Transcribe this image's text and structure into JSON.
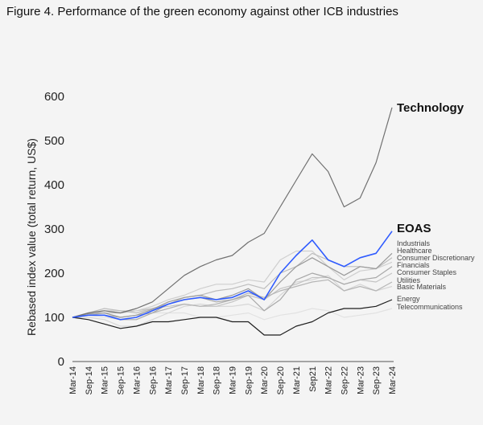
{
  "chart_data": {
    "type": "line",
    "title": "Figure 4. Performance of the green economy against other ICB industries",
    "xlabel": "",
    "ylabel": "Rebased index value (total return, US$)",
    "ylim": [
      0,
      600
    ],
    "yticks": [
      0,
      100,
      200,
      300,
      400,
      500,
      600
    ],
    "grid": false,
    "legend": "direct labels at right",
    "categories": [
      "Mar-14",
      "Sep-14",
      "Mar-15",
      "Sep-15",
      "Mar-16",
      "Sep-16",
      "Mar-17",
      "Sep-17",
      "Mar-18",
      "Sep-18",
      "Mar-19",
      "Sep-19",
      "Mar-20",
      "Sep-20",
      "Mar-21",
      "Sep21",
      "Mar-22",
      "Sep-22",
      "Mar-23",
      "Sep-23",
      "Mar-24"
    ],
    "series": [
      {
        "name": "Technology",
        "color": "#707070",
        "values": [
          100,
          110,
          115,
          110,
          120,
          135,
          165,
          195,
          215,
          230,
          240,
          270,
          290,
          350,
          410,
          470,
          430,
          350,
          370,
          450,
          575
        ]
      },
      {
        "name": "EOAS",
        "color": "#2f5bff",
        "values": [
          100,
          105,
          105,
          95,
          100,
          115,
          130,
          140,
          145,
          140,
          145,
          160,
          140,
          200,
          240,
          275,
          230,
          215,
          235,
          245,
          295
        ]
      },
      {
        "name": "Industrials",
        "color": "#9a9a9a",
        "values": [
          100,
          108,
          110,
          100,
          105,
          118,
          135,
          145,
          150,
          140,
          150,
          165,
          140,
          180,
          215,
          235,
          215,
          195,
          215,
          210,
          245
        ]
      },
      {
        "name": "Healthcare",
        "color": "#bdbdbd",
        "values": [
          100,
          110,
          120,
          115,
          110,
          120,
          130,
          145,
          150,
          160,
          165,
          175,
          165,
          200,
          215,
          245,
          230,
          215,
          215,
          210,
          235
        ]
      },
      {
        "name": "Consumer Discretionary",
        "color": "#cfcfcf",
        "values": [
          100,
          105,
          115,
          115,
          115,
          125,
          140,
          150,
          165,
          175,
          175,
          185,
          180,
          230,
          250,
          250,
          215,
          185,
          205,
          210,
          225
        ]
      },
      {
        "name": "Financials",
        "color": "#a8a8a8",
        "values": [
          100,
          105,
          105,
          95,
          95,
          110,
          130,
          140,
          145,
          135,
          140,
          150,
          115,
          140,
          185,
          200,
          190,
          175,
          185,
          190,
          215
        ]
      },
      {
        "name": "Consumer Staples",
        "color": "#c4c4c4",
        "values": [
          100,
          105,
          110,
          110,
          115,
          120,
          125,
          130,
          125,
          125,
          135,
          150,
          140,
          165,
          175,
          190,
          190,
          175,
          185,
          180,
          200
        ]
      },
      {
        "name": "Utilities",
        "color": "#b5b5b5",
        "values": [
          100,
          105,
          105,
          100,
          105,
          110,
          120,
          130,
          125,
          130,
          140,
          155,
          145,
          160,
          170,
          180,
          185,
          160,
          170,
          160,
          180
        ]
      },
      {
        "name": "Basic Materials",
        "color": "#d6d6d6",
        "values": [
          100,
          100,
          95,
          80,
          80,
          95,
          110,
          125,
          130,
          125,
          125,
          130,
          115,
          150,
          180,
          185,
          195,
          160,
          175,
          160,
          170
        ]
      },
      {
        "name": "Energy",
        "color": "#1e1e1e",
        "values": [
          100,
          95,
          85,
          75,
          80,
          90,
          90,
          95,
          100,
          100,
          90,
          90,
          60,
          60,
          80,
          90,
          110,
          120,
          120,
          125,
          140
        ]
      },
      {
        "name": "Telecommunications",
        "color": "#e2e2e2",
        "values": [
          100,
          105,
          100,
          95,
          100,
          110,
          110,
          110,
          100,
          100,
          105,
          110,
          95,
          105,
          110,
          120,
          115,
          100,
          105,
          110,
          120
        ]
      }
    ]
  }
}
